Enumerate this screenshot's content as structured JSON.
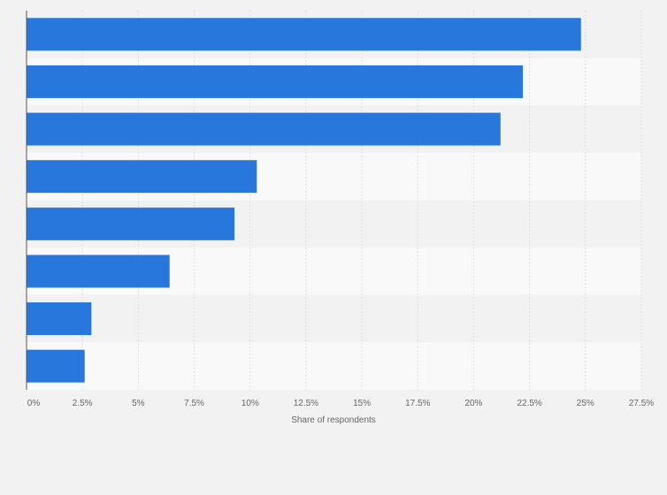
{
  "chart_data": {
    "type": "bar",
    "orientation": "horizontal",
    "categories": [
      "",
      "",
      "",
      "",
      "",
      "",
      "",
      ""
    ],
    "values": [
      24.8,
      22.2,
      21.2,
      10.3,
      9.3,
      6.4,
      2.9,
      2.6
    ],
    "xlabel": "Share of respondents",
    "ylabel": "",
    "xlim": [
      0,
      27.5
    ],
    "x_ticks": [
      0,
      2.5,
      5,
      7.5,
      10,
      12.5,
      15,
      17.5,
      20,
      22.5,
      25,
      27.5
    ],
    "x_tick_labels": [
      "0%",
      "2.5%",
      "5%",
      "7.5%",
      "10%",
      "12.5%",
      "15%",
      "17.5%",
      "20%",
      "22.5%",
      "25%",
      "27.5%"
    ],
    "grid": true,
    "legend": "none"
  },
  "colors": {
    "bar": "#2877dd",
    "background": "#f2f2f2",
    "band_light": "#f9f9f9",
    "band_dark": "#f2f2f2",
    "grid": "#dedede",
    "axis": "#555555",
    "text": "#666666"
  }
}
